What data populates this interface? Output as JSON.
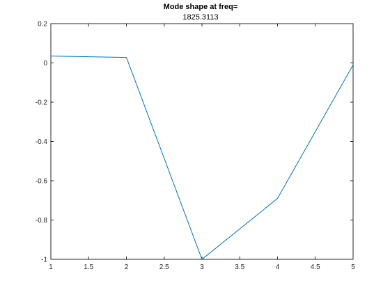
{
  "colors": {
    "background": "#ffffff",
    "axes": "#262626",
    "series": "#0072bd"
  },
  "chart_data": {
    "type": "line",
    "title": "Mode shape at freq=",
    "subtitle": "1825.3113",
    "xlabel": "",
    "ylabel": "",
    "xlim": [
      1,
      5
    ],
    "ylim": [
      -1,
      0.2
    ],
    "xticks": [
      1,
      1.5,
      2,
      2.5,
      3,
      3.5,
      4,
      4.5,
      5
    ],
    "xtick_labels": [
      "1",
      "1.5",
      "2",
      "2.5",
      "3",
      "3.5",
      "4",
      "4.5",
      "5"
    ],
    "yticks": [
      -1,
      -0.8,
      -0.6,
      -0.4,
      -0.2,
      0,
      0.2
    ],
    "ytick_labels": [
      "-1",
      "-0.8",
      "-0.6",
      "-0.4",
      "-0.2",
      "0",
      "0.2"
    ],
    "grid": false,
    "series": [
      {
        "x": [
          1,
          2,
          3,
          4,
          5
        ],
        "y": [
          0.035,
          0.028,
          -1.0,
          -0.69,
          -0.01
        ]
      }
    ]
  }
}
